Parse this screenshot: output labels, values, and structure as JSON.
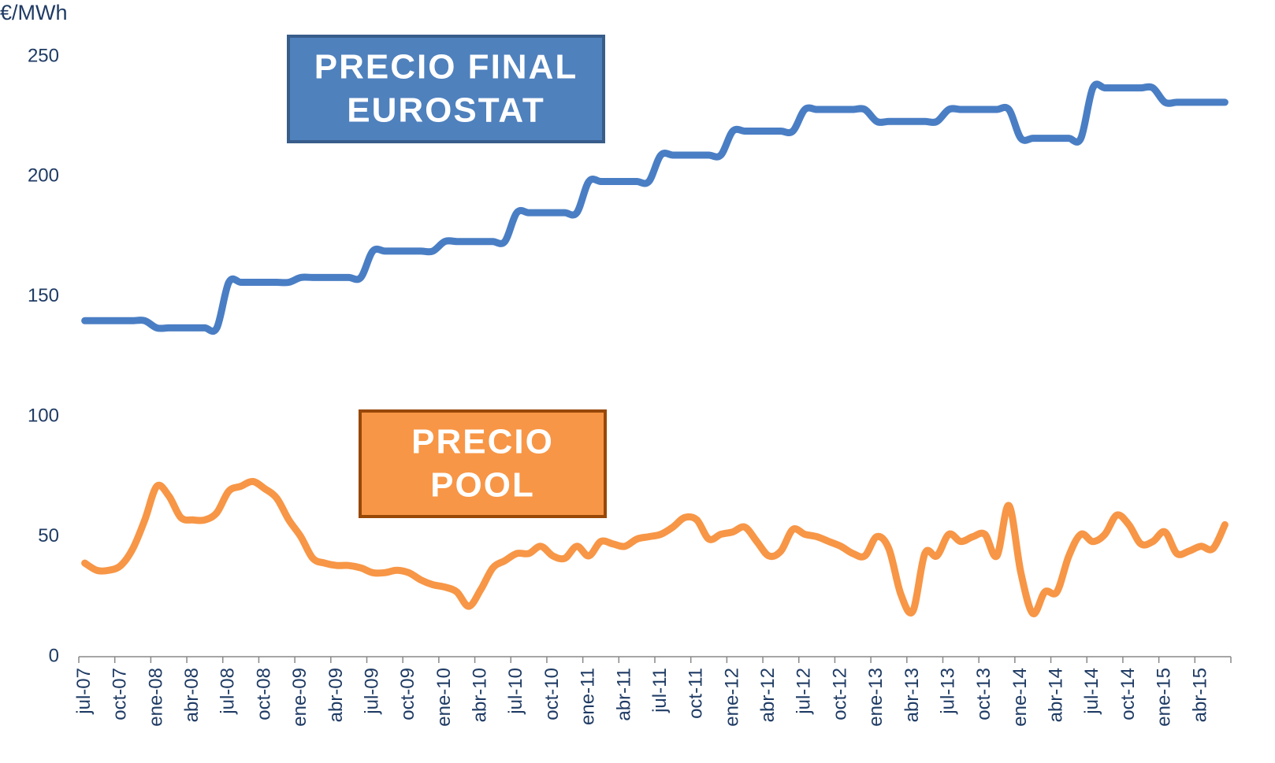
{
  "chart_data": {
    "type": "line",
    "y_label": "€/MWh",
    "categories": [
      "jul-07",
      null,
      null,
      "oct-07",
      null,
      null,
      "ene-08",
      null,
      null,
      "abr-08",
      null,
      null,
      "jul-08",
      null,
      null,
      "oct-08",
      null,
      null,
      "ene-09",
      null,
      null,
      "abr-09",
      null,
      null,
      "jul-09",
      null,
      null,
      "oct-09",
      null,
      null,
      "ene-10",
      null,
      null,
      "abr-10",
      null,
      null,
      "jul-10",
      null,
      null,
      "oct-10",
      null,
      null,
      "ene-11",
      null,
      null,
      "abr-11",
      null,
      null,
      "jul-11",
      null,
      null,
      "oct-11",
      null,
      null,
      "ene-12",
      null,
      null,
      "abr-12",
      null,
      null,
      "jul-12",
      null,
      null,
      "oct-12",
      null,
      null,
      "ene-13",
      null,
      null,
      "abr-13",
      null,
      null,
      "jul-13",
      null,
      null,
      "oct-13",
      null,
      null,
      "ene-14",
      null,
      null,
      "abr-14",
      null,
      null,
      "jul-14",
      null,
      null,
      "oct-14",
      null,
      null,
      "ene-15",
      null,
      null,
      "abr-15",
      null,
      null
    ],
    "series": [
      {
        "color": "#4a7ec4",
        "values": [
          140,
          140,
          140,
          140,
          140,
          140,
          137,
          137,
          137,
          137,
          137,
          137,
          156,
          156,
          156,
          156,
          156,
          156,
          158,
          158,
          158,
          158,
          158,
          158,
          169,
          169,
          169,
          169,
          169,
          169,
          173,
          173,
          173,
          173,
          173,
          173,
          185,
          185,
          185,
          185,
          185,
          185,
          198,
          198,
          198,
          198,
          198,
          198,
          209,
          209,
          209,
          209,
          209,
          209,
          219,
          219,
          219,
          219,
          219,
          219,
          228,
          228,
          228,
          228,
          228,
          228,
          223,
          223,
          223,
          223,
          223,
          223,
          228,
          228,
          228,
          228,
          228,
          228,
          216,
          216,
          216,
          216,
          216,
          216,
          237,
          237,
          237,
          237,
          237,
          237,
          231,
          231,
          231,
          231,
          231,
          231
        ]
      },
      {
        "color": "#f79646",
        "values": [
          39,
          36,
          36,
          38,
          45,
          57,
          71,
          67,
          58,
          57,
          57,
          60,
          69,
          71,
          73,
          70,
          66,
          57,
          50,
          41,
          39,
          38,
          38,
          37,
          35,
          35,
          36,
          35,
          32,
          30,
          29,
          27,
          21,
          28,
          37,
          40,
          43,
          43,
          46,
          42,
          41,
          46,
          42,
          48,
          47,
          46,
          49,
          50,
          51,
          54,
          58,
          57,
          49,
          51,
          52,
          54,
          48,
          42,
          44,
          53,
          51,
          50,
          48,
          46,
          43,
          42,
          50,
          45,
          26,
          19,
          43,
          42,
          51,
          48,
          50,
          51,
          42,
          63,
          35,
          18,
          27,
          27,
          42,
          51,
          48,
          51,
          59,
          55,
          47,
          48,
          52,
          43,
          44,
          46,
          45,
          55
        ]
      }
    ],
    "annotations": [
      {
        "lines": [
          "PRECIO FINAL",
          "EUROSTAT"
        ],
        "fill": "#4f81bd",
        "border": "#385d8a"
      },
      {
        "lines": [
          "PRECIO",
          "POOL"
        ],
        "fill": "#f79646",
        "border": "#984807"
      }
    ],
    "ylim": [
      0,
      250
    ],
    "yticks": [
      0,
      50,
      100,
      150,
      200,
      250
    ],
    "grid": false
  }
}
